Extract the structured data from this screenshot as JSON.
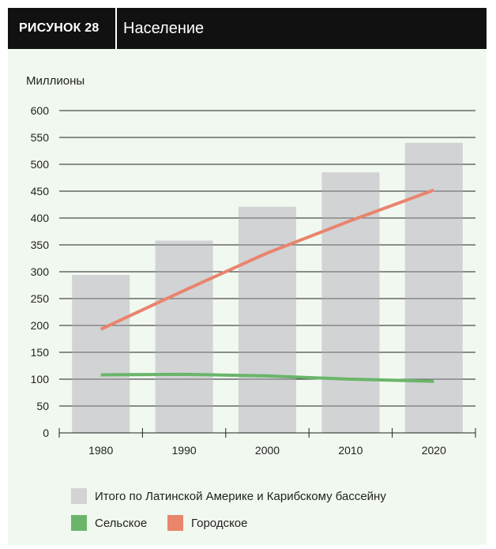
{
  "header": {
    "figure_label": "РИСУНОК 28",
    "title": "Население"
  },
  "chart_data": {
    "type": "bar",
    "title": "Население",
    "ylabel": "Миллионы",
    "xlabel": "",
    "ylim": [
      0,
      600
    ],
    "yticks": [
      0,
      50,
      100,
      150,
      200,
      250,
      300,
      350,
      400,
      450,
      500,
      550,
      600
    ],
    "categories": [
      "1980",
      "1990",
      "2000",
      "2010",
      "2020"
    ],
    "grid": true,
    "legend_position": "bottom",
    "bars": {
      "name": "Итого по Латинской Америке и Карибскому бассейну",
      "color": "#d2d3d5",
      "values": [
        294,
        358,
        421,
        485,
        540
      ]
    },
    "lines": [
      {
        "name": "Сельское",
        "color": "#6ab56a",
        "values": [
          108,
          109,
          106,
          100,
          96
        ]
      },
      {
        "name": "Городское",
        "color": "#e9846d",
        "values": [
          193,
          265,
          335,
          395,
          452
        ]
      }
    ]
  }
}
